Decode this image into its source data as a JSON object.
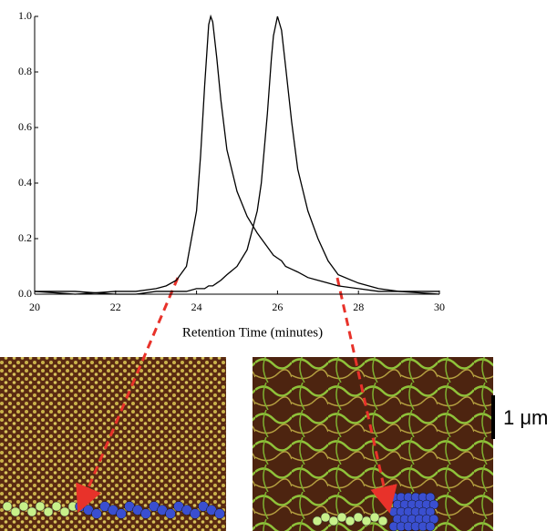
{
  "chart_data": {
    "type": "line",
    "x_label": "Retention Time (minutes)",
    "scale_bar_label": "1 μm",
    "x": [
      20,
      21,
      22,
      22.5,
      23,
      23.25,
      23.5,
      23.75,
      24,
      24.1,
      24.2,
      24.3,
      24.35,
      24.4,
      24.5,
      24.6,
      24.75,
      25,
      25.25,
      25.5,
      25.6,
      25.75,
      25.85,
      25.9,
      26,
      26.1,
      26.2,
      26.35,
      26.5,
      26.75,
      27,
      27.25,
      27.5,
      28,
      28.5,
      29,
      30
    ],
    "series": [
      {
        "color": "#000000",
        "values": [
          0.01,
          0.0,
          0.01,
          0.01,
          0.02,
          0.03,
          0.05,
          0.1,
          0.3,
          0.5,
          0.75,
          0.97,
          1.0,
          0.98,
          0.85,
          0.7,
          0.52,
          0.37,
          0.28,
          0.22,
          0.2,
          0.17,
          0.15,
          0.14,
          0.13,
          0.12,
          0.1,
          0.09,
          0.08,
          0.06,
          0.05,
          0.04,
          0.03,
          0.02,
          0.01,
          0.01,
          0.0
        ]
      },
      {
        "color": "#000000",
        "values": [
          0.01,
          0.01,
          0.0,
          0.0,
          0.01,
          0.01,
          0.01,
          0.01,
          0.02,
          0.02,
          0.02,
          0.03,
          0.03,
          0.03,
          0.04,
          0.05,
          0.07,
          0.1,
          0.16,
          0.3,
          0.4,
          0.65,
          0.85,
          0.93,
          1.0,
          0.95,
          0.82,
          0.62,
          0.45,
          0.3,
          0.2,
          0.12,
          0.07,
          0.04,
          0.02,
          0.01,
          0.01
        ]
      }
    ],
    "xlim": [
      20,
      30
    ],
    "xticks": [
      20,
      22,
      24,
      26,
      28,
      30
    ],
    "ylim": [
      0,
      1.0
    ],
    "yticks": [
      {
        "value": 0,
        "label": "0.0"
      },
      {
        "value": 0.2,
        "label": "0.2"
      },
      {
        "value": 0.4,
        "label": "0.4"
      },
      {
        "value": 0.6,
        "label": "0.6"
      },
      {
        "value": 0.8,
        "label": "0.8"
      },
      {
        "value": 1.0,
        "label": "1.0"
      }
    ],
    "grid": false
  }
}
